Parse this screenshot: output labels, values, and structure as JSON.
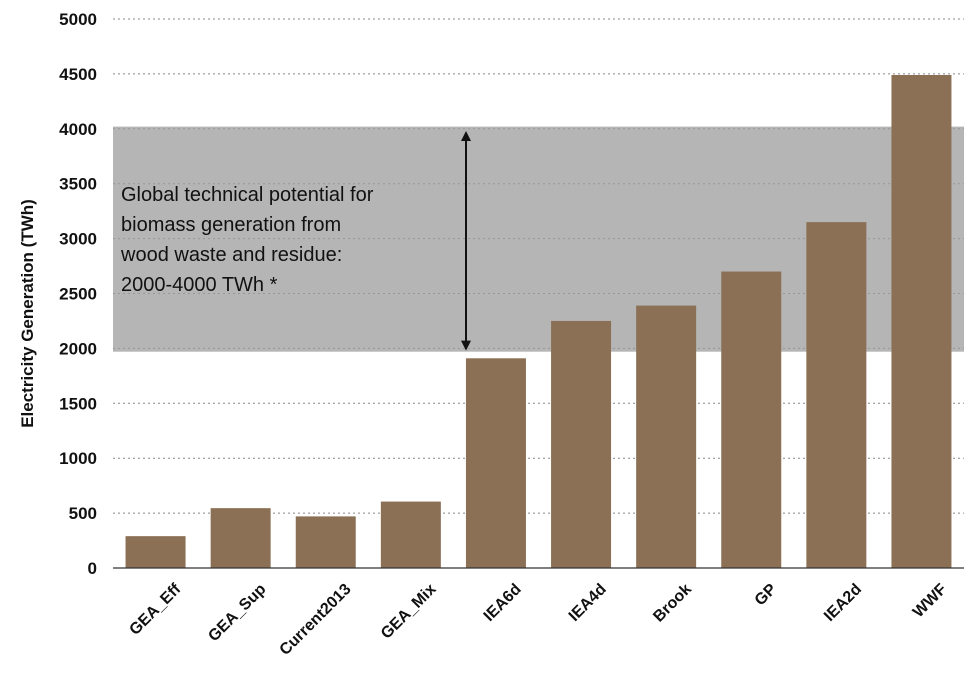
{
  "chart_data": {
    "type": "bar",
    "title": "",
    "xlabel": "",
    "ylabel": "Electricity Generation (TWh)",
    "ylim": [
      0,
      5000
    ],
    "yticks": [
      0,
      500,
      1000,
      1500,
      2000,
      2500,
      3000,
      3500,
      4000,
      4500,
      5000
    ],
    "grid": true,
    "categories": [
      "GEA_Eff",
      "GEA_Sup",
      "Current2013",
      "GEA_Mix",
      "IEA6d",
      "IEA4d",
      "Brook",
      "GP",
      "IEA2d",
      "WWF"
    ],
    "values": [
      290,
      545,
      470,
      605,
      1910,
      2250,
      2390,
      2700,
      3150,
      4490
    ],
    "colors": {
      "bar": "#8b7055",
      "band": "#9c9c9c"
    },
    "annotation": {
      "band_range": [
        1970,
        4020
      ],
      "arrow_range": [
        1980,
        3980
      ],
      "text_lines": [
        "Global technical potential for",
        "biomass generation from",
        "wood waste and residue:",
        "2000-4000 TWh *"
      ]
    }
  }
}
